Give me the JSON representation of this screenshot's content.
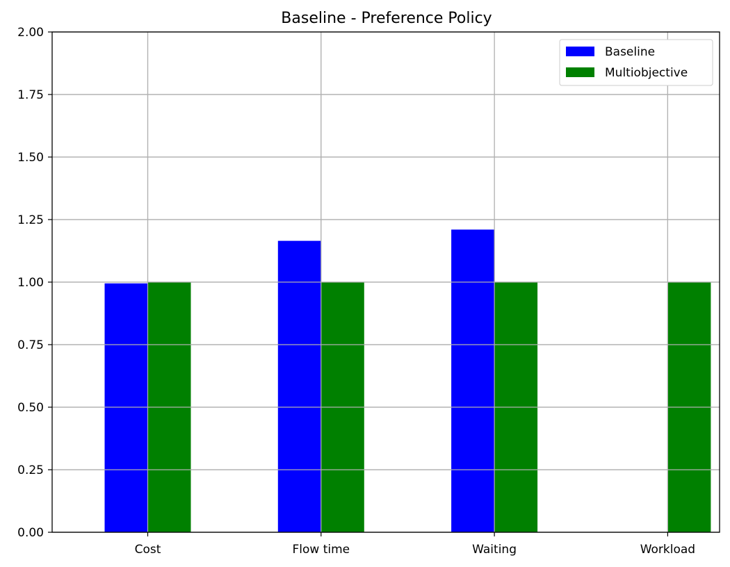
{
  "chart_data": {
    "type": "bar",
    "title": "Baseline - Preference Policy",
    "xlabel": "",
    "ylabel": "",
    "categories": [
      "Cost",
      "Flow time",
      "Waiting",
      "Workload"
    ],
    "series": [
      {
        "name": "Baseline",
        "color": "#0000ff",
        "values": [
          0.995,
          1.165,
          1.21,
          0
        ]
      },
      {
        "name": "Multiobjective",
        "color": "#008000",
        "values": [
          1.0,
          1.0,
          1.0,
          1.0
        ]
      }
    ],
    "ylim": [
      0,
      2.0
    ],
    "yticks": [
      "0.00",
      "0.25",
      "0.50",
      "0.75",
      "1.00",
      "1.25",
      "1.50",
      "1.75",
      "2.00"
    ],
    "grid": true,
    "legend_position": "top-right"
  }
}
